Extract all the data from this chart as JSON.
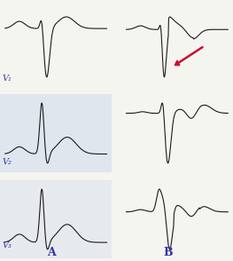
{
  "title_A": "A",
  "title_B": "B",
  "labels": [
    "V₁",
    "V₂",
    "V₃"
  ],
  "bg_color": "#f5f5f0",
  "ecg_color": "#1a1a1a",
  "highlight_color": "#ccd8ee",
  "arrow_color": "#cc1133",
  "label_color": "#3333aa",
  "figsize": [
    2.63,
    2.94
  ],
  "dpi": 100,
  "lw": 0.8
}
